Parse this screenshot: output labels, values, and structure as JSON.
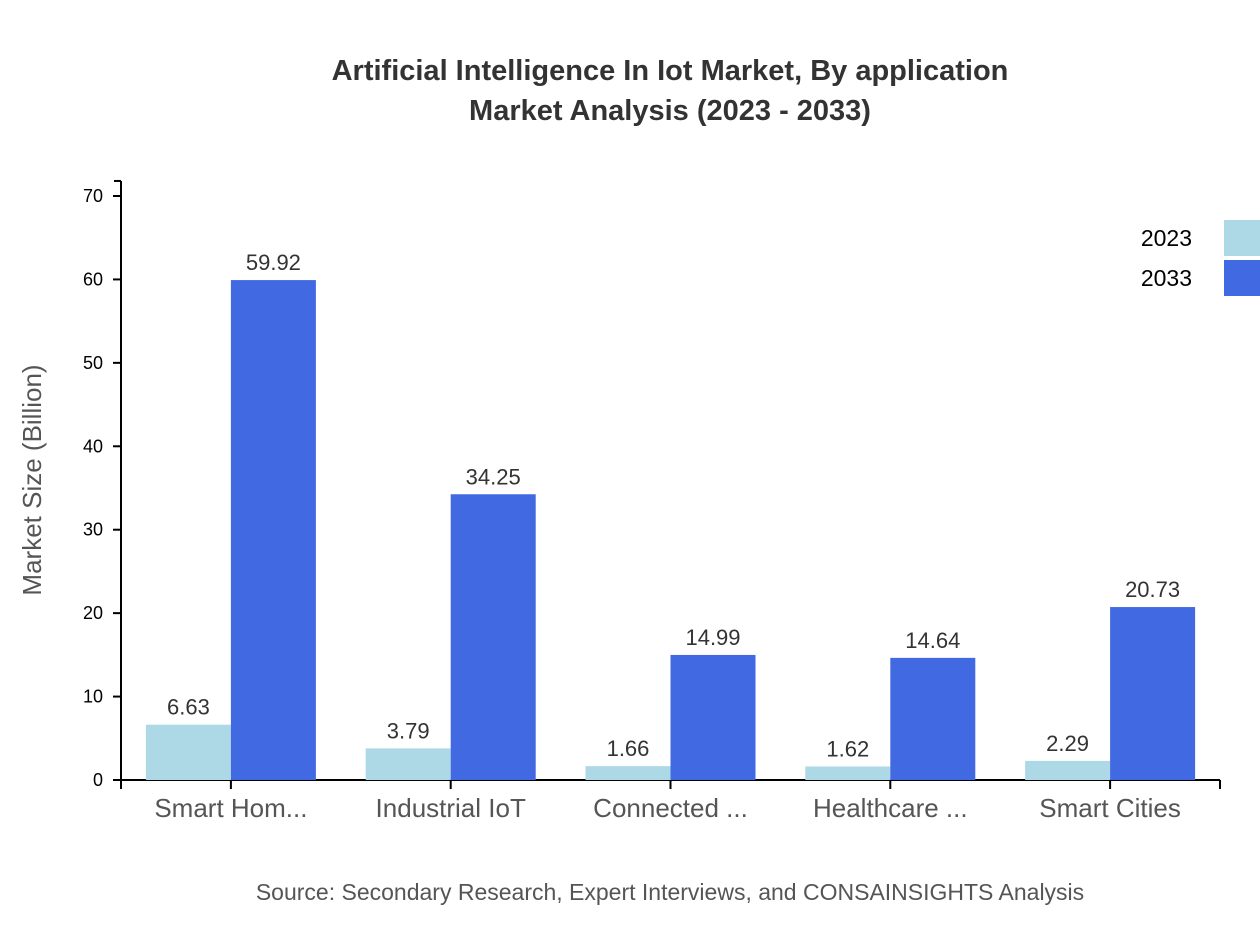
{
  "chart_data": {
    "type": "bar",
    "title": "Artificial Intelligence In Iot Market, By application",
    "subtitle": "Market Analysis (2023 - 2033)",
    "xlabel": "",
    "ylabel": "Market Size (Billion)",
    "ylim": [
      0,
      71.8
    ],
    "yticks": [
      0,
      10,
      20,
      30,
      40,
      50,
      60,
      70
    ],
    "grid": false,
    "legend_position": "top-right",
    "categories": [
      "Smart Hom...",
      "Industrial IoT",
      "Connected ...",
      "Healthcare ...",
      "Smart Cities"
    ],
    "series": [
      {
        "name": "2023",
        "color": "#add8e6",
        "values": [
          6.63,
          3.79,
          1.66,
          1.62,
          2.29
        ]
      },
      {
        "name": "2033",
        "color": "#4169e1",
        "values": [
          59.92,
          34.25,
          14.99,
          14.64,
          20.73
        ]
      }
    ],
    "source": "Source: Secondary Research, Expert Interviews, and CONSAINSIGHTS Analysis"
  }
}
